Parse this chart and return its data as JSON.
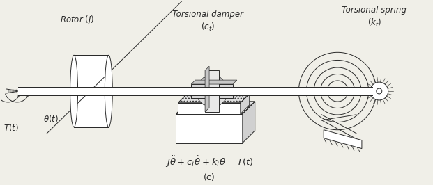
{
  "bg_color": "#f0efe8",
  "line_color": "#2a2a2a",
  "title_spring": "Torsional spring\n$(k_t)$",
  "label_damper_top": "Torsional damper",
  "label_damper_bot": "$(c_t)$",
  "label_rotor": "Rotor $(J)$",
  "equation": "$J\\ddot{\\theta} + c_t\\dot{\\theta} + k_t\\theta = T(t)$",
  "label_c": "(c)",
  "label_T": "$T(t)$",
  "label_theta": "$\\theta(t)$",
  "fig_width": 6.21,
  "fig_height": 2.66,
  "dpi": 100
}
